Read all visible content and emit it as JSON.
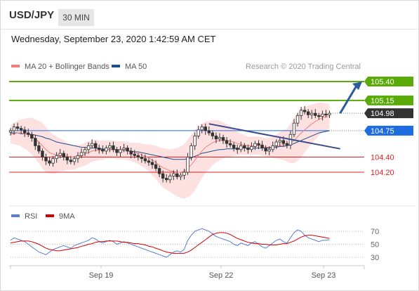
{
  "header": {
    "symbol": "USD/JPY",
    "timeframe": "30 MIN"
  },
  "datetime": "Wednesday, September 23, 2020 1:42:59 AM CET",
  "legend": {
    "items": [
      {
        "name": "MA 20 + Bollinger Bands",
        "color": "#f08080"
      },
      {
        "name": "MA 50",
        "color": "#1f4e8c"
      }
    ],
    "credit": "Research © 2020 Trading Central"
  },
  "rsi_legend": {
    "items": [
      {
        "name": "RSI",
        "color": "#5b7fd6"
      },
      {
        "name": "9MA",
        "color": "#d40000"
      }
    ]
  },
  "chart_data": [
    {
      "type": "candlestick",
      "title": "USD/JPY 30 MIN",
      "x_ticks": [
        "Sep 19",
        "Sep 22",
        "Sep 23"
      ],
      "price_levels": [
        {
          "value": 105.4,
          "label": "105.40",
          "color": "#5aaa0a",
          "kind": "resistance"
        },
        {
          "value": 105.15,
          "label": "105.15",
          "color": "#5aaa0a",
          "kind": "resistance"
        },
        {
          "value": 104.98,
          "label": "104.98",
          "color": "#333333",
          "kind": "last"
        },
        {
          "value": 104.75,
          "label": "104.75",
          "color": "#1e6de0",
          "kind": "pivot"
        },
        {
          "value": 104.4,
          "label": "104.40",
          "color": "#e02020",
          "kind": "support"
        },
        {
          "value": 104.2,
          "label": "104.20",
          "color": "#e02020",
          "kind": "support"
        }
      ],
      "close": [
        104.75,
        104.8,
        104.78,
        104.76,
        104.72,
        104.7,
        104.65,
        104.55,
        104.48,
        104.4,
        104.35,
        104.32,
        104.38,
        104.42,
        104.45,
        104.4,
        104.36,
        104.34,
        104.38,
        104.42,
        104.46,
        104.5,
        104.55,
        104.58,
        104.52,
        104.5,
        104.48,
        104.52,
        104.55,
        104.5,
        104.46,
        104.5,
        104.52,
        104.48,
        104.44,
        104.42,
        104.4,
        104.38,
        104.35,
        104.33,
        104.3,
        104.25,
        104.18,
        104.12,
        104.1,
        104.15,
        104.18,
        104.14,
        104.16,
        104.2,
        104.4,
        104.55,
        104.68,
        104.76,
        104.8,
        104.75,
        104.72,
        104.68,
        104.64,
        104.66,
        104.62,
        104.58,
        104.56,
        104.52,
        104.5,
        104.55,
        104.52,
        104.5,
        104.54,
        104.58,
        104.56,
        104.52,
        104.48,
        104.5,
        104.55,
        104.6,
        104.62,
        104.58,
        104.56,
        104.7,
        104.85,
        104.95,
        105.02,
        105.0,
        104.96,
        104.98,
        104.95,
        104.94,
        104.97,
        104.96,
        104.98
      ],
      "ma20": [
        104.7,
        104.71,
        104.72,
        104.72,
        104.71,
        104.7,
        104.68,
        104.64,
        104.6,
        104.55,
        104.5,
        104.46,
        104.44,
        104.43,
        104.43,
        104.42,
        104.41,
        104.4,
        104.4,
        104.41,
        104.42,
        104.44,
        104.46,
        104.48,
        104.49,
        104.49,
        104.49,
        104.5,
        104.5,
        104.5,
        104.49,
        104.49,
        104.49,
        104.48,
        104.47,
        104.46,
        104.45,
        104.43,
        104.41,
        104.39,
        104.36,
        104.33,
        104.29,
        104.26,
        104.24,
        104.22,
        104.21,
        104.2,
        104.2,
        104.21,
        104.25,
        104.3,
        104.36,
        104.42,
        104.48,
        104.53,
        104.56,
        104.59,
        104.61,
        104.62,
        104.62,
        104.62,
        104.61,
        104.6,
        104.58,
        104.57,
        104.56,
        104.55,
        104.55,
        104.55,
        104.55,
        104.54,
        104.53,
        104.53,
        104.53,
        104.54,
        104.55,
        104.56,
        104.56,
        104.58,
        104.62,
        104.67,
        104.72,
        104.76,
        104.8,
        104.84,
        104.87,
        104.9,
        104.92,
        104.93,
        104.94
      ],
      "ma50": [
        104.72,
        104.72,
        104.72,
        104.71,
        104.71,
        104.7,
        104.7,
        104.69,
        104.68,
        104.67,
        104.65,
        104.64,
        104.62,
        104.6,
        104.59,
        104.58,
        104.57,
        104.56,
        104.55,
        104.54,
        104.53,
        104.53,
        104.52,
        104.52,
        104.52,
        104.51,
        104.51,
        104.5,
        104.5,
        104.5,
        104.5,
        104.49,
        104.49,
        104.48,
        104.48,
        104.47,
        104.47,
        104.46,
        104.45,
        104.44,
        104.43,
        104.42,
        104.41,
        104.4,
        104.39,
        104.38,
        104.37,
        104.37,
        104.37,
        104.37,
        104.38,
        104.39,
        104.41,
        104.43,
        104.45,
        104.46,
        104.47,
        104.48,
        104.49,
        104.5,
        104.5,
        104.51,
        104.51,
        104.51,
        104.51,
        104.52,
        104.52,
        104.52,
        104.52,
        104.52,
        104.52,
        104.52,
        104.52,
        104.52,
        104.53,
        104.53,
        104.54,
        104.54,
        104.55,
        104.56,
        104.58,
        104.6,
        104.62,
        104.64,
        104.66,
        104.68,
        104.7,
        104.72,
        104.73,
        104.74,
        104.75
      ],
      "bb_width": [
        0.12,
        0.14,
        0.16,
        0.18,
        0.2,
        0.22,
        0.24,
        0.26,
        0.28,
        0.3,
        0.3,
        0.28,
        0.26,
        0.24,
        0.22,
        0.2,
        0.18,
        0.17,
        0.16,
        0.15,
        0.15,
        0.15,
        0.15,
        0.14,
        0.14,
        0.13,
        0.13,
        0.12,
        0.12,
        0.12,
        0.12,
        0.12,
        0.12,
        0.12,
        0.12,
        0.13,
        0.14,
        0.15,
        0.16,
        0.18,
        0.2,
        0.22,
        0.24,
        0.26,
        0.27,
        0.28,
        0.3,
        0.32,
        0.34,
        0.36,
        0.38,
        0.4,
        0.4,
        0.38,
        0.36,
        0.34,
        0.32,
        0.3,
        0.28,
        0.26,
        0.24,
        0.22,
        0.2,
        0.18,
        0.16,
        0.14,
        0.13,
        0.12,
        0.12,
        0.12,
        0.12,
        0.12,
        0.12,
        0.13,
        0.14,
        0.16,
        0.18,
        0.2,
        0.22,
        0.26,
        0.3,
        0.32,
        0.32,
        0.3,
        0.28,
        0.26,
        0.24,
        0.22,
        0.2,
        0.18,
        0.16
      ],
      "trendline": {
        "x": [
          56,
          93
        ],
        "y": [
          104.84,
          104.51
        ],
        "color": "#3a4a8c"
      },
      "arrow": {
        "x": [
          104,
          116
        ],
        "y": [
          104.98,
          105.4
        ],
        "color": "#2a5c9c"
      }
    },
    {
      "type": "line",
      "title": "RSI",
      "series": [
        {
          "name": "RSI",
          "values": [
            56,
            60,
            58,
            56,
            54,
            50,
            46,
            42,
            38,
            36,
            34,
            38,
            42,
            44,
            46,
            48,
            46,
            44,
            48,
            50,
            52,
            54,
            56,
            60,
            58,
            54,
            52,
            54,
            56,
            54,
            50,
            52,
            54,
            52,
            50,
            48,
            46,
            44,
            42,
            40,
            38,
            36,
            34,
            32,
            30,
            34,
            38,
            40,
            38,
            42,
            56,
            64,
            70,
            72,
            74,
            72,
            70,
            66,
            62,
            60,
            58,
            56,
            54,
            50,
            48,
            52,
            50,
            48,
            52,
            54,
            50,
            46,
            44,
            48,
            52,
            56,
            58,
            54,
            52,
            60,
            68,
            72,
            70,
            64,
            60,
            58,
            56,
            54,
            56,
            56,
            57
          ]
        },
        {
          "name": "9MA",
          "values": [
            52,
            53,
            54,
            55,
            55,
            55,
            54,
            52,
            50,
            47,
            44,
            42,
            41,
            40,
            40,
            41,
            42,
            43,
            44,
            45,
            47,
            48,
            50,
            51,
            53,
            54,
            54,
            55,
            55,
            55,
            55,
            54,
            53,
            53,
            52,
            51,
            51,
            50,
            49,
            47,
            46,
            44,
            42,
            40,
            38,
            37,
            36,
            36,
            36,
            36,
            38,
            41,
            45,
            49,
            53,
            57,
            61,
            65,
            67,
            68,
            68,
            67,
            65,
            62,
            59,
            57,
            55,
            53,
            52,
            51,
            51,
            50,
            50,
            49,
            49,
            49,
            50,
            51,
            51,
            53,
            55,
            58,
            61,
            63,
            64,
            64,
            63,
            62,
            61,
            60,
            59
          ]
        }
      ],
      "y_ticks": [
        70,
        50,
        30
      ],
      "ylim": [
        20,
        80
      ]
    }
  ]
}
